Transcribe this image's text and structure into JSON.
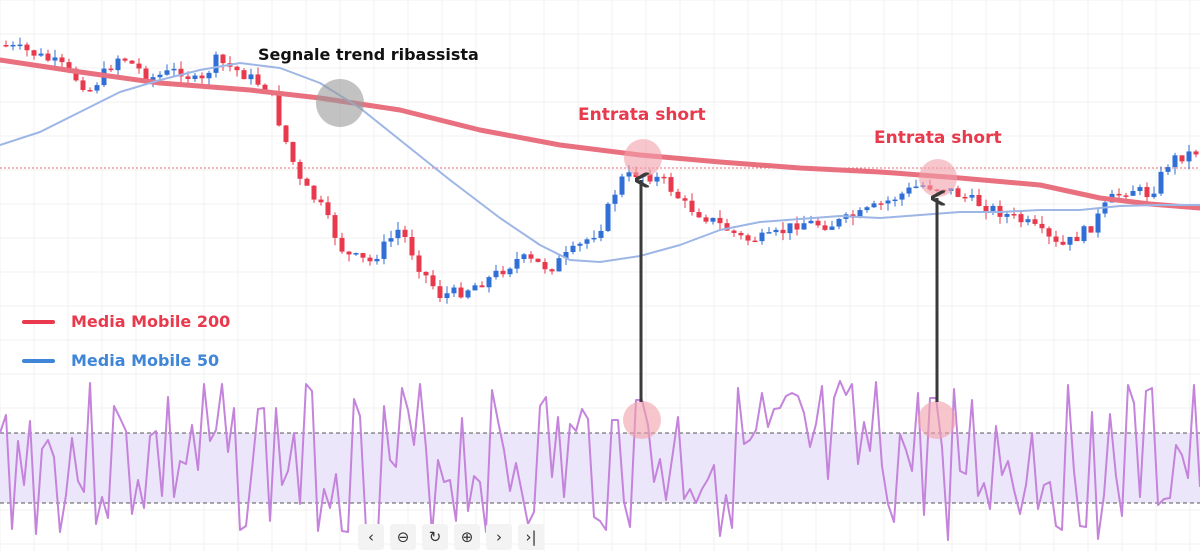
{
  "annotations": {
    "trend_signal": "Segnale trend ribassista",
    "entry_1": "Entrata short",
    "entry_2": "Entrata short"
  },
  "legend": [
    {
      "label": "Media Mobile 200",
      "color": "#e8394d"
    },
    {
      "label": "Media Mobile 50",
      "color": "#3f86d8"
    }
  ],
  "colors": {
    "up_candle": "#2f6fd6",
    "down_candle": "#e8394d",
    "ma200": "#e8707f",
    "ma50": "#9db6e6",
    "rsi_line": "#c584dc",
    "rsi_band": "#ece6fa",
    "highlight_red": "#f2a0aa",
    "highlight_grey": "#9a9a9a"
  },
  "toolbar": {
    "icons": [
      "chevron-left-icon",
      "zoom-out-icon",
      "reset-icon",
      "zoom-in-icon",
      "chevron-right-icon",
      "go-to-end-icon"
    ],
    "glyphs": [
      "‹",
      "⊖",
      "↻",
      "⊕",
      "›",
      "›|"
    ]
  },
  "chart_data": {
    "type": "line",
    "series": [
      {
        "name": "Media Mobile 200",
        "values": [
          0.0,
          0.0
        ]
      },
      {
        "name": "Media Mobile 50",
        "values": [
          0.0,
          0.0
        ]
      }
    ],
    "rsi_band": [
      30,
      70
    ],
    "grid": true
  }
}
